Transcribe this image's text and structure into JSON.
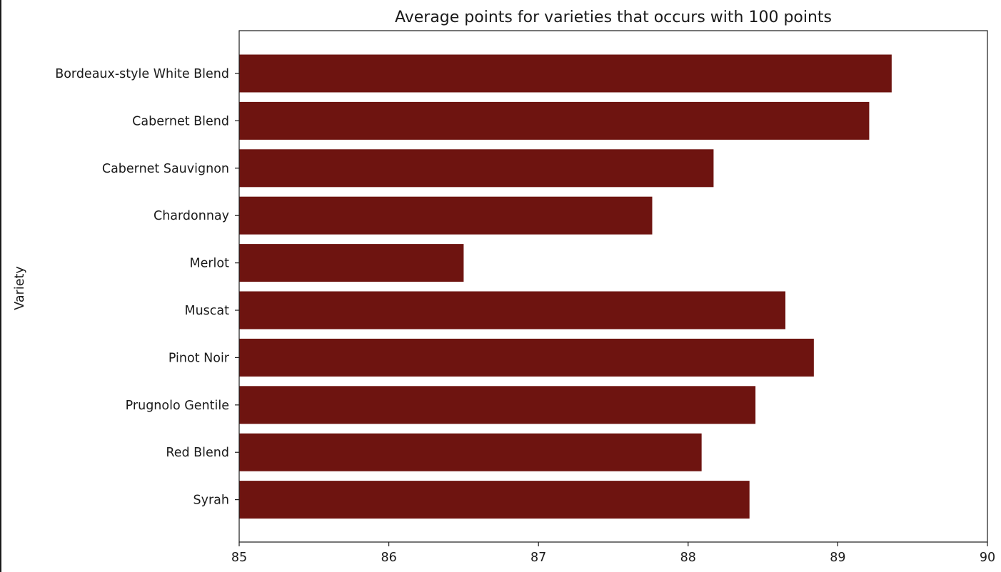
{
  "chart_data": {
    "type": "bar",
    "orientation": "horizontal",
    "title": "Average points for varieties that occurs with 100 points",
    "xlabel": "",
    "ylabel": "Variety",
    "categories": [
      "Bordeaux-style White Blend",
      "Cabernet Blend",
      "Cabernet Sauvignon",
      "Chardonnay",
      "Merlot",
      "Muscat",
      "Pinot Noir",
      "Prugnolo Gentile",
      "Red Blend",
      "Syrah"
    ],
    "values": [
      89.36,
      89.21,
      88.17,
      87.76,
      86.5,
      88.65,
      88.84,
      88.45,
      88.09,
      88.41
    ],
    "xlim": [
      85,
      90
    ],
    "xticks": [
      85,
      86,
      87,
      88,
      89,
      90
    ],
    "x_tick_labels": [
      "85",
      "86",
      "87",
      "88",
      "89",
      "90"
    ],
    "bar_color": "#6e1410",
    "grid": false,
    "legend": "none"
  }
}
